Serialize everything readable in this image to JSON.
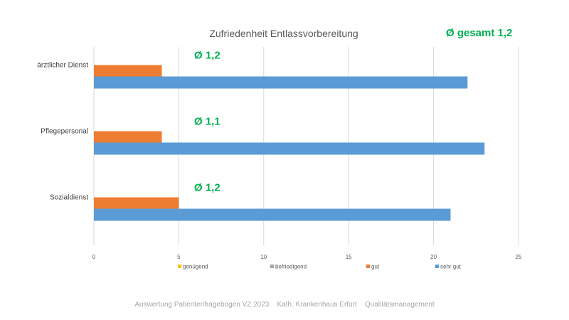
{
  "chart_data": {
    "type": "bar",
    "orientation": "horizontal",
    "title": "Zufriedenheit Entlassvorbereitung",
    "overall_label": "Ø gesamt 1,2",
    "categories": [
      "ärztlicher Dienst",
      "Pflegepersonal",
      "Sozialdienst"
    ],
    "category_averages": [
      "Ø 1,2",
      "Ø 1,1",
      "Ø 1,2"
    ],
    "series": [
      {
        "name": "genügend",
        "color": "#ffc000",
        "values": [
          0,
          0,
          0
        ]
      },
      {
        "name": "befriedigend",
        "color": "#a5a5a5",
        "values": [
          0,
          0,
          0
        ]
      },
      {
        "name": "gut",
        "color": "#ed7d31",
        "values": [
          4,
          4,
          5
        ]
      },
      {
        "name": "sehr gut",
        "color": "#5b9bd5",
        "values": [
          22,
          23,
          21
        ]
      }
    ],
    "xlim": [
      0,
      25
    ],
    "xticks": [
      0,
      5,
      10,
      15,
      20,
      25
    ],
    "grid": true,
    "legend_position": "bottom"
  },
  "footer": "Auswertung Patientenfragebogen VZ 2023    Kath. Krankenhaus Erfurt    Qualitätsmanagement"
}
